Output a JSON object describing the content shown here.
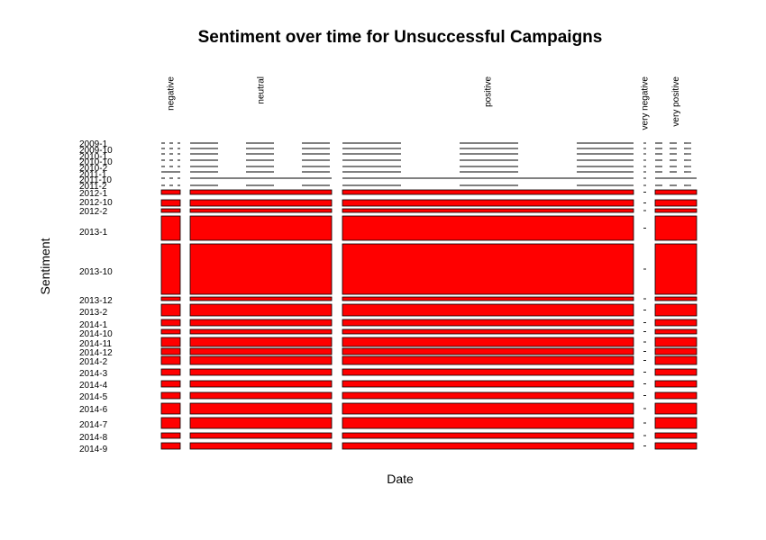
{
  "chart_data": {
    "type": "mosaic",
    "title": "Sentiment over time for Unsuccessful Campaigns",
    "xlabel": "Date",
    "ylabel": "Sentiment",
    "fill_color": "#ff0000",
    "columns": [
      "negative",
      "neutral",
      "positive",
      "very negative",
      "very positive"
    ],
    "column_shares": [
      0.069,
      0.489,
      1.0,
      0.003,
      0.139
    ],
    "rows": [
      {
        "label": "2009-1",
        "share": 0.0,
        "cells": [
          0,
          0,
          0,
          0,
          0
        ]
      },
      {
        "label": "2009-10",
        "share": 0.0,
        "cells": [
          0,
          0,
          0,
          0,
          0
        ]
      },
      {
        "label": "2010-1",
        "share": 0.0,
        "cells": [
          0,
          0,
          0,
          0,
          0
        ]
      },
      {
        "label": "2010-10",
        "share": 0.0,
        "cells": [
          0,
          0,
          0,
          0,
          0
        ]
      },
      {
        "label": "2010-2",
        "share": 0.0,
        "cells": [
          0,
          0,
          0,
          0,
          0
        ]
      },
      {
        "label": "2011-1",
        "share": 0.6,
        "cells": [
          1,
          0,
          0,
          0,
          0
        ]
      },
      {
        "label": "2011-10",
        "share": 0.8,
        "cells": [
          0,
          1,
          1,
          0,
          1
        ]
      },
      {
        "label": "2011-2",
        "share": 0.0,
        "cells": [
          0,
          0,
          0,
          0,
          0
        ]
      },
      {
        "label": "2012-1",
        "share": 2.5,
        "cells": [
          1,
          1,
          1,
          0,
          1
        ]
      },
      {
        "label": "2012-10",
        "share": 4.0,
        "cells": [
          1,
          1,
          1,
          0,
          1
        ]
      },
      {
        "label": "2012-2",
        "share": 1.5,
        "cells": [
          1,
          1,
          1,
          0,
          1
        ]
      },
      {
        "label": "2013-1",
        "share": 18.0,
        "cells": [
          1,
          1,
          1,
          0,
          1
        ]
      },
      {
        "label": "2013-10",
        "share": 30.0,
        "cells": [
          1,
          1,
          1,
          0,
          1
        ]
      },
      {
        "label": "2013-12",
        "share": 2.0,
        "cells": [
          1,
          1,
          1,
          0,
          1
        ]
      },
      {
        "label": "2013-2",
        "share": 6.0,
        "cells": [
          1,
          1,
          1,
          0,
          1
        ]
      },
      {
        "label": "2014-1",
        "share": 4.0,
        "cells": [
          1,
          1,
          1,
          0,
          1
        ]
      },
      {
        "label": "2014-10",
        "share": 2.5,
        "cells": [
          1,
          1,
          1,
          0,
          1
        ]
      },
      {
        "label": "2014-11",
        "share": 5.0,
        "cells": [
          1,
          1,
          1,
          0,
          1
        ]
      },
      {
        "label": "2014-12",
        "share": 3.0,
        "cells": [
          1,
          1,
          1,
          0,
          1
        ]
      },
      {
        "label": "2014-2",
        "share": 4.0,
        "cells": [
          1,
          1,
          1,
          0,
          1
        ]
      },
      {
        "label": "2014-3",
        "share": 4.0,
        "cells": [
          1,
          1,
          1,
          0,
          1
        ]
      },
      {
        "label": "2014-4",
        "share": 4.0,
        "cells": [
          1,
          1,
          1,
          0,
          1
        ]
      },
      {
        "label": "2014-5",
        "share": 4.0,
        "cells": [
          1,
          1,
          1,
          0,
          1
        ]
      },
      {
        "label": "2014-6",
        "share": 6.0,
        "cells": [
          1,
          1,
          1,
          0,
          1
        ]
      },
      {
        "label": "2014-7",
        "share": 6.0,
        "cells": [
          1,
          1,
          1,
          0,
          1
        ]
      },
      {
        "label": "2014-8",
        "share": 4.0,
        "cells": [
          1,
          1,
          1,
          0,
          1
        ]
      },
      {
        "label": "2014-9",
        "share": 4.0,
        "cells": [
          1,
          1,
          1,
          0,
          1
        ]
      }
    ]
  }
}
